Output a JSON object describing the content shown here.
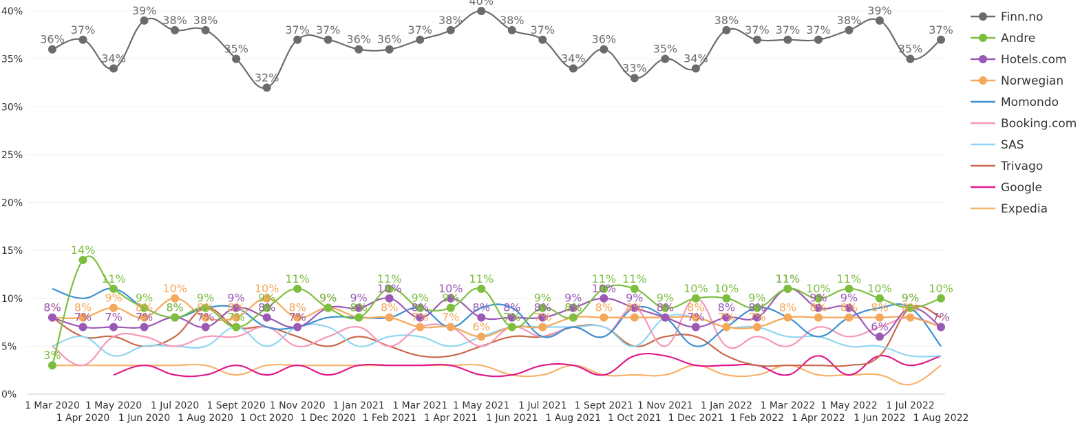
{
  "chart_data": {
    "type": "line",
    "x": [
      "1 Mar 2020",
      "1 Apr 2020",
      "1 May 2020",
      "1 Jun 2020",
      "1 Jul 2020",
      "1 Aug 2020",
      "1 Sept 2020",
      "1 Oct 2020",
      "1 Nov 2020",
      "1 Dec 2020",
      "1 Jan 2021",
      "1 Feb 2021",
      "1 Mar 2021",
      "1 Apr 2021",
      "1 May 2021",
      "1 Jun 2021",
      "1 Jul 2021",
      "1 Aug 2021",
      "1 Sept 2021",
      "1 Oct 2021",
      "1 Nov 2021",
      "1 Dec 2021",
      "1 Jan 2022",
      "1 Feb 2022",
      "1 Mar 2022",
      "1 Apr 2022",
      "1 May 2022",
      "1 Jun 2022",
      "1 Jul 2022",
      "1 Aug 2022"
    ],
    "y_ticks": [
      "0%",
      "5%",
      "10%",
      "15%",
      "20%",
      "25%",
      "30%",
      "35%",
      "40%"
    ],
    "ylim": [
      0,
      40
    ],
    "legend_position": "right",
    "series": [
      {
        "name": "Finn.no",
        "color": "#6b6b6b",
        "markers": true,
        "labels": true,
        "values": [
          36,
          37,
          34,
          39,
          38,
          38,
          35,
          32,
          37,
          37,
          36,
          36,
          37,
          38,
          40,
          38,
          37,
          34,
          36,
          33,
          35,
          34,
          38,
          37,
          37,
          37,
          38,
          39,
          35,
          37
        ]
      },
      {
        "name": "Andre",
        "color": "#7cbf3f",
        "markers": true,
        "labels": true,
        "values": [
          3,
          14,
          11,
          9,
          8,
          9,
          7,
          9,
          11,
          9,
          8,
          11,
          9,
          9,
          11,
          7,
          9,
          8,
          11,
          11,
          9,
          10,
          10,
          9,
          11,
          10,
          11,
          10,
          9,
          10
        ]
      },
      {
        "name": "Hotels.com",
        "color": "#9b59b6",
        "markers": true,
        "labels": true,
        "values": [
          8,
          7,
          7,
          7,
          8,
          7,
          9,
          8,
          7,
          9,
          9,
          10,
          8,
          10,
          8,
          8,
          8,
          9,
          10,
          9,
          8,
          7,
          8,
          8,
          11,
          9,
          9,
          6,
          9,
          7
        ]
      },
      {
        "name": "Norwegian",
        "color": "#f5a85a",
        "markers": true,
        "labels": true,
        "values": [
          8,
          8,
          9,
          8,
          10,
          8,
          8,
          10,
          8,
          9,
          8,
          8,
          7,
          7,
          6,
          7,
          7,
          8,
          8,
          8,
          8,
          8,
          7,
          7,
          8,
          8,
          8,
          8,
          8,
          7
        ]
      },
      {
        "name": "Momondo",
        "color": "#3d8fd1",
        "markers": false,
        "labels": false,
        "values": [
          11,
          10,
          11,
          9,
          8,
          9,
          9,
          7,
          7,
          8,
          8,
          8,
          9,
          7,
          9,
          9,
          6,
          7,
          6,
          9,
          8,
          5,
          7,
          9,
          8,
          6,
          8,
          9,
          9,
          5
        ]
      },
      {
        "name": "Booking.com",
        "color": "#f598b8",
        "markers": false,
        "labels": false,
        "values": [
          5,
          3,
          6,
          6,
          5,
          6,
          6,
          7,
          5,
          6,
          7,
          5,
          7,
          7,
          5,
          7,
          6,
          7,
          6,
          9,
          5,
          10,
          5,
          6,
          5,
          7,
          6,
          7,
          8,
          7
        ]
      },
      {
        "name": "SAS",
        "color": "#8fd6f2",
        "markers": false,
        "labels": false,
        "values": [
          5,
          6,
          4,
          5,
          5,
          5,
          7,
          5,
          7,
          7,
          5,
          6,
          6,
          5,
          6,
          7,
          7,
          7,
          7,
          5,
          8,
          8,
          7,
          7,
          6,
          6,
          5,
          5,
          4,
          4
        ]
      },
      {
        "name": "Trivago",
        "color": "#c9694a",
        "markers": false,
        "labels": false,
        "values": [
          8,
          6,
          6,
          5,
          6,
          9,
          7,
          7,
          6,
          5,
          6,
          5,
          4,
          4,
          5,
          6,
          6,
          7,
          7,
          5,
          6,
          6,
          4,
          3,
          3,
          3,
          3,
          4,
          9,
          8
        ]
      },
      {
        "name": "Google",
        "color": "#e0198a",
        "markers": false,
        "labels": false,
        "values": [
          null,
          null,
          2,
          3,
          2,
          2,
          3,
          2,
          3,
          2,
          3,
          3,
          3,
          3,
          2,
          2,
          3,
          3,
          2,
          4,
          4,
          3,
          3,
          3,
          2,
          4,
          2,
          4,
          3,
          4
        ]
      },
      {
        "name": "Expedia",
        "color": "#f7b26b",
        "markers": false,
        "labels": false,
        "values": [
          3,
          3,
          3,
          3,
          3,
          3,
          2,
          3,
          3,
          3,
          3,
          3,
          3,
          3,
          3,
          2,
          2,
          3,
          2,
          2,
          2,
          3,
          2,
          2,
          3,
          2,
          2,
          2,
          1,
          3
        ]
      }
    ]
  }
}
